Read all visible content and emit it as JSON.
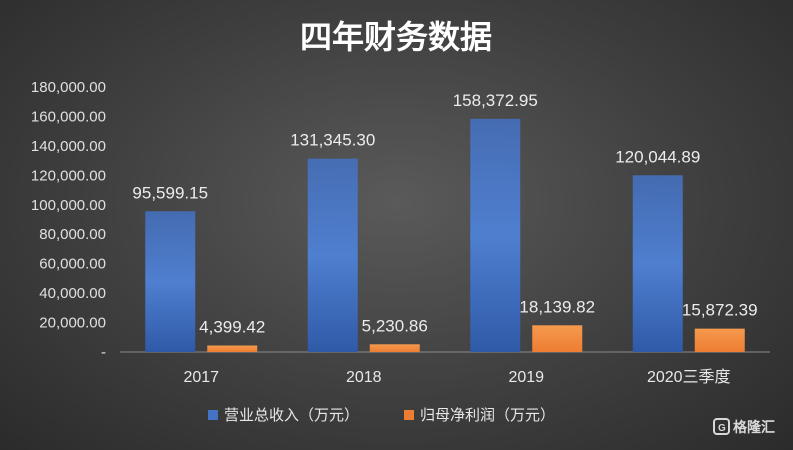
{
  "chart_data": {
    "type": "bar",
    "title": "四年财务数据",
    "categories": [
      "2017",
      "2018",
      "2019",
      "2020三季度"
    ],
    "series": [
      {
        "name": "营业总收入（万元）",
        "color": "#4472c4",
        "values": [
          95599.15,
          131345.3,
          158372.95,
          120044.89
        ],
        "labels": [
          "95,599.15",
          "131,345.30",
          "158,372.95",
          "120,044.89"
        ]
      },
      {
        "name": "归母净利润（万元）",
        "color": "#ed7d31",
        "values": [
          4399.42,
          5230.86,
          18139.82,
          15872.39
        ],
        "labels": [
          "4,399.42",
          "5,230.86",
          "18,139.82",
          "15,872.39"
        ]
      }
    ],
    "ylim": [
      0,
      180000
    ],
    "yticks": [
      0,
      20000,
      40000,
      60000,
      80000,
      100000,
      120000,
      140000,
      160000,
      180000
    ],
    "ytick_labels": [
      "-",
      "20,000.00",
      "40,000.00",
      "60,000.00",
      "80,000.00",
      "100,000.00",
      "120,000.00",
      "140,000.00",
      "160,000.00",
      "180,000.00"
    ],
    "xlabel": "",
    "ylabel": "",
    "grid": false,
    "legend": "bottom"
  },
  "watermark": {
    "text": "格隆汇",
    "icon": "g-logo-icon"
  }
}
